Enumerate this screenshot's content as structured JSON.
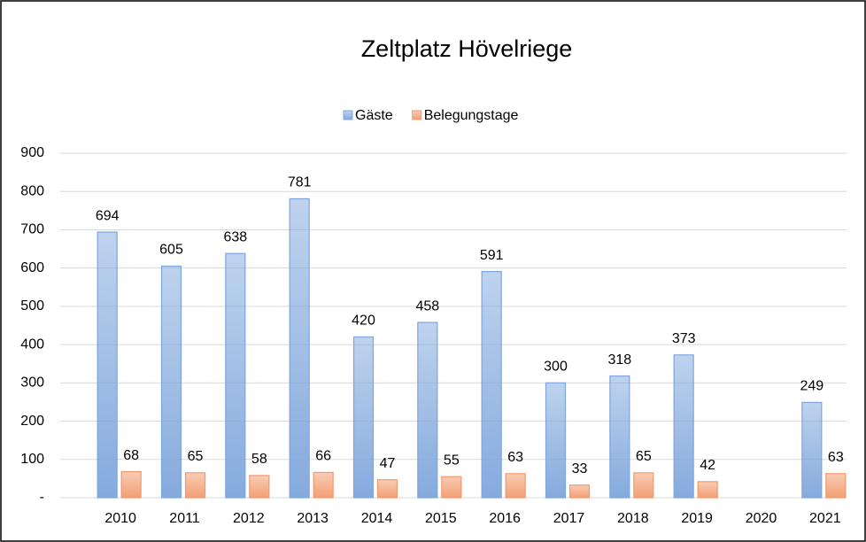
{
  "chart_data": {
    "type": "bar",
    "title": "Zeltplatz Hövelriege",
    "categories": [
      "2010",
      "2011",
      "2012",
      "2013",
      "2014",
      "2015",
      "2016",
      "2017",
      "2018",
      "2019",
      "2020",
      "2021"
    ],
    "series": [
      {
        "name": "Gäste",
        "color": "#7ea6dc",
        "values": [
          694,
          605,
          638,
          781,
          420,
          458,
          591,
          300,
          318,
          373,
          null,
          249
        ]
      },
      {
        "name": "Belegungstage",
        "color": "#f29a6c",
        "values": [
          68,
          65,
          58,
          66,
          47,
          55,
          63,
          33,
          65,
          42,
          null,
          63
        ]
      }
    ],
    "ylim": [
      0,
      900
    ],
    "yticks": [
      {
        "value": 0,
        "label": "-"
      },
      100,
      200,
      300,
      400,
      500,
      600,
      700,
      800,
      900
    ],
    "grid": true,
    "legend": "top"
  }
}
